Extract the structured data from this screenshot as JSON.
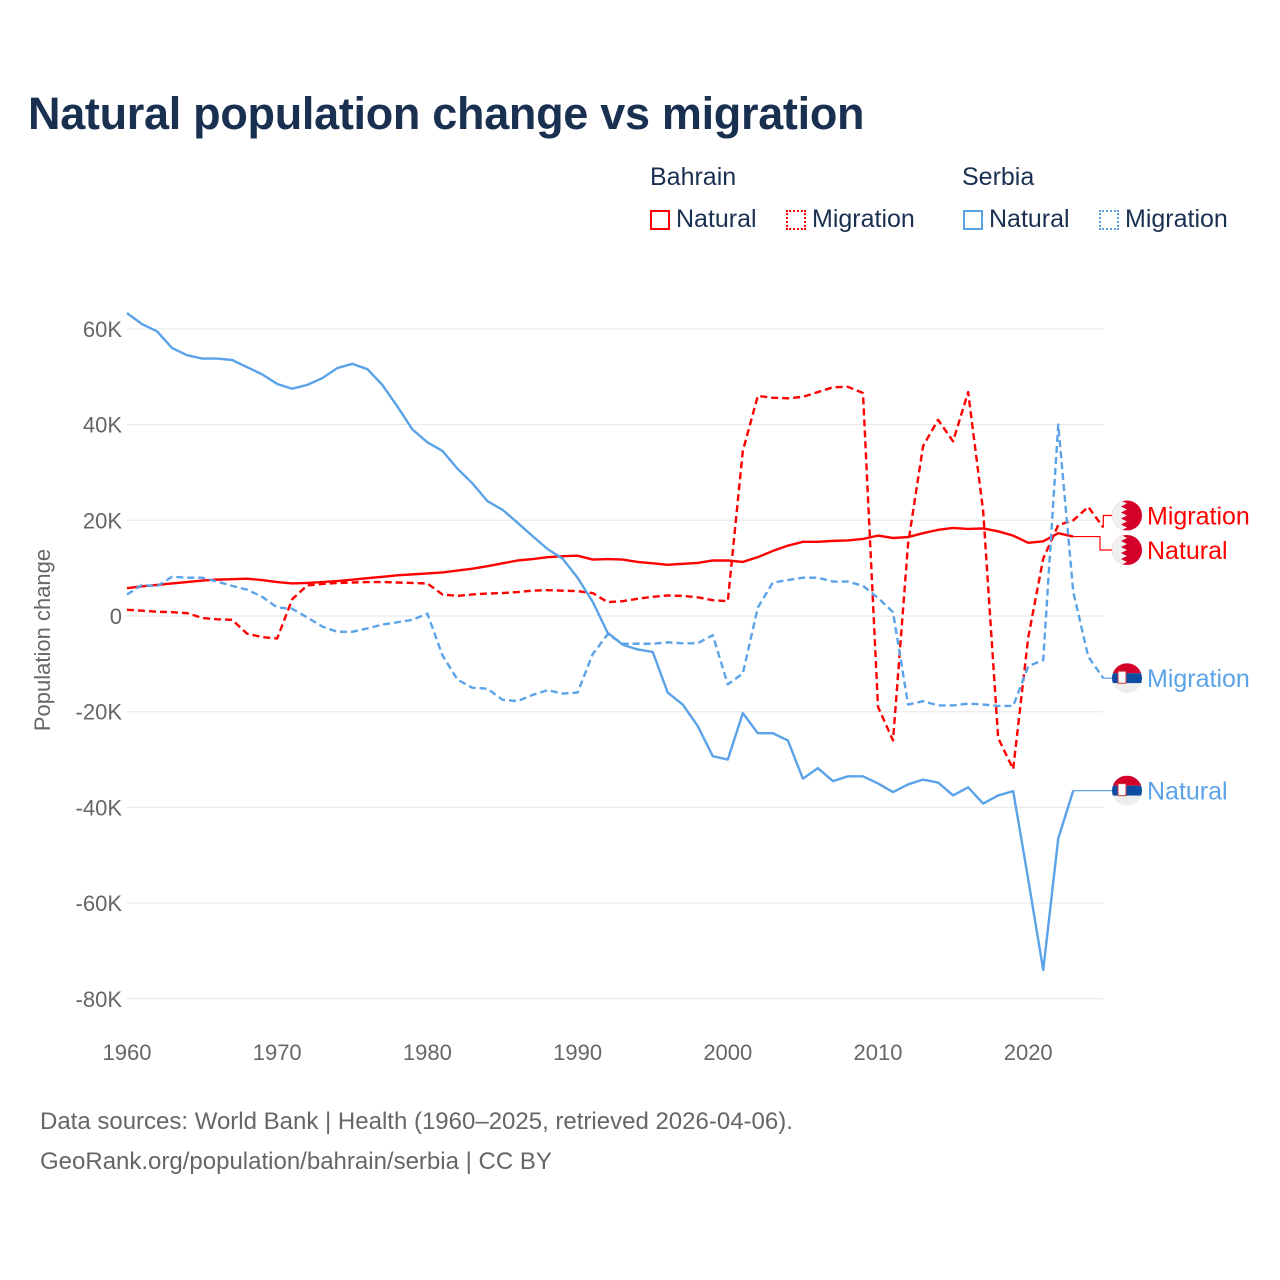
{
  "title": "Natural population change vs migration",
  "legend": {
    "groups": [
      {
        "name": "Bahrain",
        "items": [
          "Natural",
          "Migration"
        ],
        "color": "#ff0000"
      },
      {
        "name": "Serbia",
        "items": [
          "Natural",
          "Migration"
        ],
        "color": "#5ba3e8"
      }
    ]
  },
  "footer": {
    "line1": "Data sources: World Bank | Health (1960–2025, retrieved 2026-04-06).",
    "line2": "GeoRank.org/population/bahrain/serbia | CC BY"
  },
  "chart_data": {
    "type": "line",
    "title": "Natural population change vs migration",
    "xlabel": "",
    "ylabel": "Population change",
    "xlim": [
      1960,
      2025
    ],
    "ylim": [
      -80000,
      60000
    ],
    "x_ticks": [
      "1960",
      "1970",
      "1980",
      "1990",
      "2000",
      "2010",
      "2020"
    ],
    "y_ticks": [
      {
        "v": 60000,
        "label": "60K"
      },
      {
        "v": 40000,
        "label": "40K"
      },
      {
        "v": 20000,
        "label": "20K"
      },
      {
        "v": 0,
        "label": "0"
      },
      {
        "v": -20000,
        "label": "-20K"
      },
      {
        "v": -40000,
        "label": "-40K"
      },
      {
        "v": -60000,
        "label": "-60K"
      },
      {
        "v": -80000,
        "label": "-80K"
      }
    ],
    "grid": true,
    "legend_placement": "top-right",
    "start_year": 1960,
    "series": [
      {
        "name": "Bahrain Natural",
        "country": "Bahrain",
        "end_label": "Natural",
        "color": "#ff0000",
        "dashed": false,
        "label_value": 13.8,
        "values": [
          5.8,
          6.2,
          6.5,
          6.8,
          7.1,
          7.4,
          7.6,
          7.7,
          7.8,
          7.5,
          7.1,
          6.8,
          6.9,
          7.1,
          7.3,
          7.6,
          7.9,
          8.2,
          8.5,
          8.7,
          8.9,
          9.1,
          9.5,
          9.9,
          10.4,
          11.0,
          11.6,
          11.9,
          12.3,
          12.5,
          12.6,
          11.8,
          11.9,
          11.8,
          11.3,
          11.0,
          10.7,
          10.9,
          11.1,
          11.6,
          11.6,
          11.3,
          12.3,
          13.6,
          14.7,
          15.5,
          15.5,
          15.7,
          15.8,
          16.1,
          16.8,
          16.3,
          16.5,
          17.3,
          18.0,
          18.4,
          18.2,
          18.3,
          17.7,
          16.8,
          15.3,
          15.6,
          17.3,
          16.6
        ]
      },
      {
        "name": "Bahrain Migration",
        "country": "Bahrain",
        "end_label": "Migration",
        "color": "#ff0000",
        "dashed": true,
        "label_value": 21,
        "values": [
          1.3,
          1.1,
          0.9,
          0.8,
          0.6,
          -0.4,
          -0.7,
          -0.8,
          -3.7,
          -4.4,
          -4.7,
          3.5,
          6.4,
          6.7,
          6.9,
          7.0,
          7.1,
          7.1,
          7.0,
          6.9,
          6.8,
          4.5,
          4.2,
          4.5,
          4.7,
          4.8,
          5.0,
          5.3,
          5.4,
          5.3,
          5.2,
          4.8,
          2.9,
          3.1,
          3.6,
          4.0,
          4.3,
          4.2,
          3.9,
          3.3,
          3.1,
          34.5,
          46.0,
          45.6,
          45.5,
          45.8,
          46.8,
          47.8,
          47.9,
          46.6,
          -19.0,
          -26.0,
          15.0,
          35.5,
          41.0,
          36.5,
          46.8,
          22.0,
          -25.5,
          -32.0,
          -4.5,
          12.0,
          19.0,
          20.0,
          22.8,
          18.5
        ]
      },
      {
        "name": "Serbia Natural",
        "country": "Serbia",
        "end_label": "Natural",
        "color": "#5ba3e8",
        "dashed": false,
        "label_value": -36.5,
        "values": [
          63.3,
          61.0,
          59.5,
          56.0,
          54.5,
          53.8,
          53.8,
          53.5,
          52.0,
          50.5,
          48.5,
          47.5,
          48.3,
          49.7,
          51.8,
          52.7,
          51.6,
          48.3,
          43.8,
          39.0,
          36.3,
          34.5,
          30.8,
          27.7,
          24.0,
          22.2,
          19.5,
          16.7,
          14.0,
          12.0,
          8.0,
          3.0,
          -3.5,
          -6.0,
          -7.0,
          -7.5,
          -16.0,
          -18.5,
          -23.0,
          -29.3,
          -30.0,
          -20.3,
          -24.5,
          -24.5,
          -26.0,
          -34.0,
          -31.8,
          -34.5,
          -33.5,
          -33.5,
          -35.0,
          -36.8,
          -35.2,
          -34.2,
          -34.8,
          -37.5,
          -35.8,
          -39.2,
          -37.5,
          -36.6,
          -55.0,
          -74.0,
          -46.5,
          -36.5
        ]
      },
      {
        "name": "Serbia Migration",
        "country": "Serbia",
        "end_label": "Migration",
        "color": "#5ba3e8",
        "dashed": true,
        "label_value": -13,
        "values": [
          4.5,
          6.5,
          6.2,
          8.2,
          8.0,
          8.0,
          7.2,
          6.3,
          5.5,
          4.0,
          1.8,
          1.5,
          -0.3,
          -2.2,
          -3.3,
          -3.3,
          -2.6,
          -1.8,
          -1.3,
          -0.8,
          0.5,
          -8.2,
          -13.3,
          -15.0,
          -15.2,
          -17.5,
          -17.8,
          -16.5,
          -15.5,
          -16.2,
          -16.0,
          -8.0,
          -3.8,
          -5.8,
          -5.8,
          -5.8,
          -5.5,
          -5.7,
          -5.7,
          -4.0,
          -14.3,
          -12.0,
          1.8,
          7.0,
          7.5,
          8.0,
          8.0,
          7.2,
          7.2,
          6.3,
          3.8,
          0.8,
          -18.5,
          -17.8,
          -18.7,
          -18.7,
          -18.3,
          -18.5,
          -18.8,
          -18.8,
          -10.5,
          -9.2,
          40.0,
          5.0,
          -8.5,
          -13.0
        ]
      }
    ],
    "value_unit": "thousands"
  }
}
